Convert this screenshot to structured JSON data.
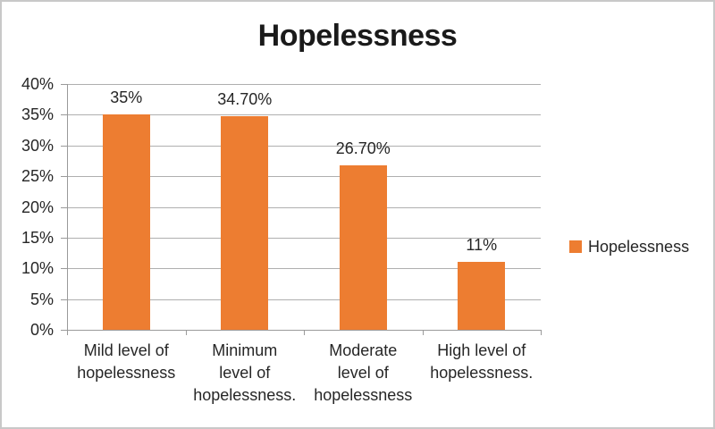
{
  "chart_data": {
    "type": "bar",
    "title": "Hopelessness",
    "series_name": "Hopelessness",
    "categories": [
      "Mild level of hopelessness",
      "Minimum level of hopelessness.",
      "Moderate level of hopelessness",
      "High level of hopelessness."
    ],
    "category_lines": [
      [
        "Mild level of",
        "hopelessness"
      ],
      [
        "Minimum",
        "level of",
        "hopelessness."
      ],
      [
        "Moderate",
        "level of",
        "hopelessness"
      ],
      [
        "High level of",
        "hopelessness."
      ]
    ],
    "values": [
      35,
      34.7,
      26.7,
      11
    ],
    "data_labels": [
      "35%",
      "34.70%",
      "26.70%",
      "11%"
    ],
    "ylim": [
      0,
      40
    ],
    "y_step": 5,
    "y_ticks": [
      "0%",
      "5%",
      "10%",
      "15%",
      "20%",
      "25%",
      "30%",
      "35%",
      "40%"
    ],
    "grid": true,
    "legend_position": "right",
    "xlabel": "",
    "ylabel": "",
    "colors": {
      "bar": "#ED7D31",
      "gridline": "#AFAFAF",
      "axis": "#9A9A9A",
      "text": "#262626",
      "title_text": "#1A1A1A",
      "chart_border": "#C8C8C8",
      "background": "#FFFFFF"
    }
  }
}
